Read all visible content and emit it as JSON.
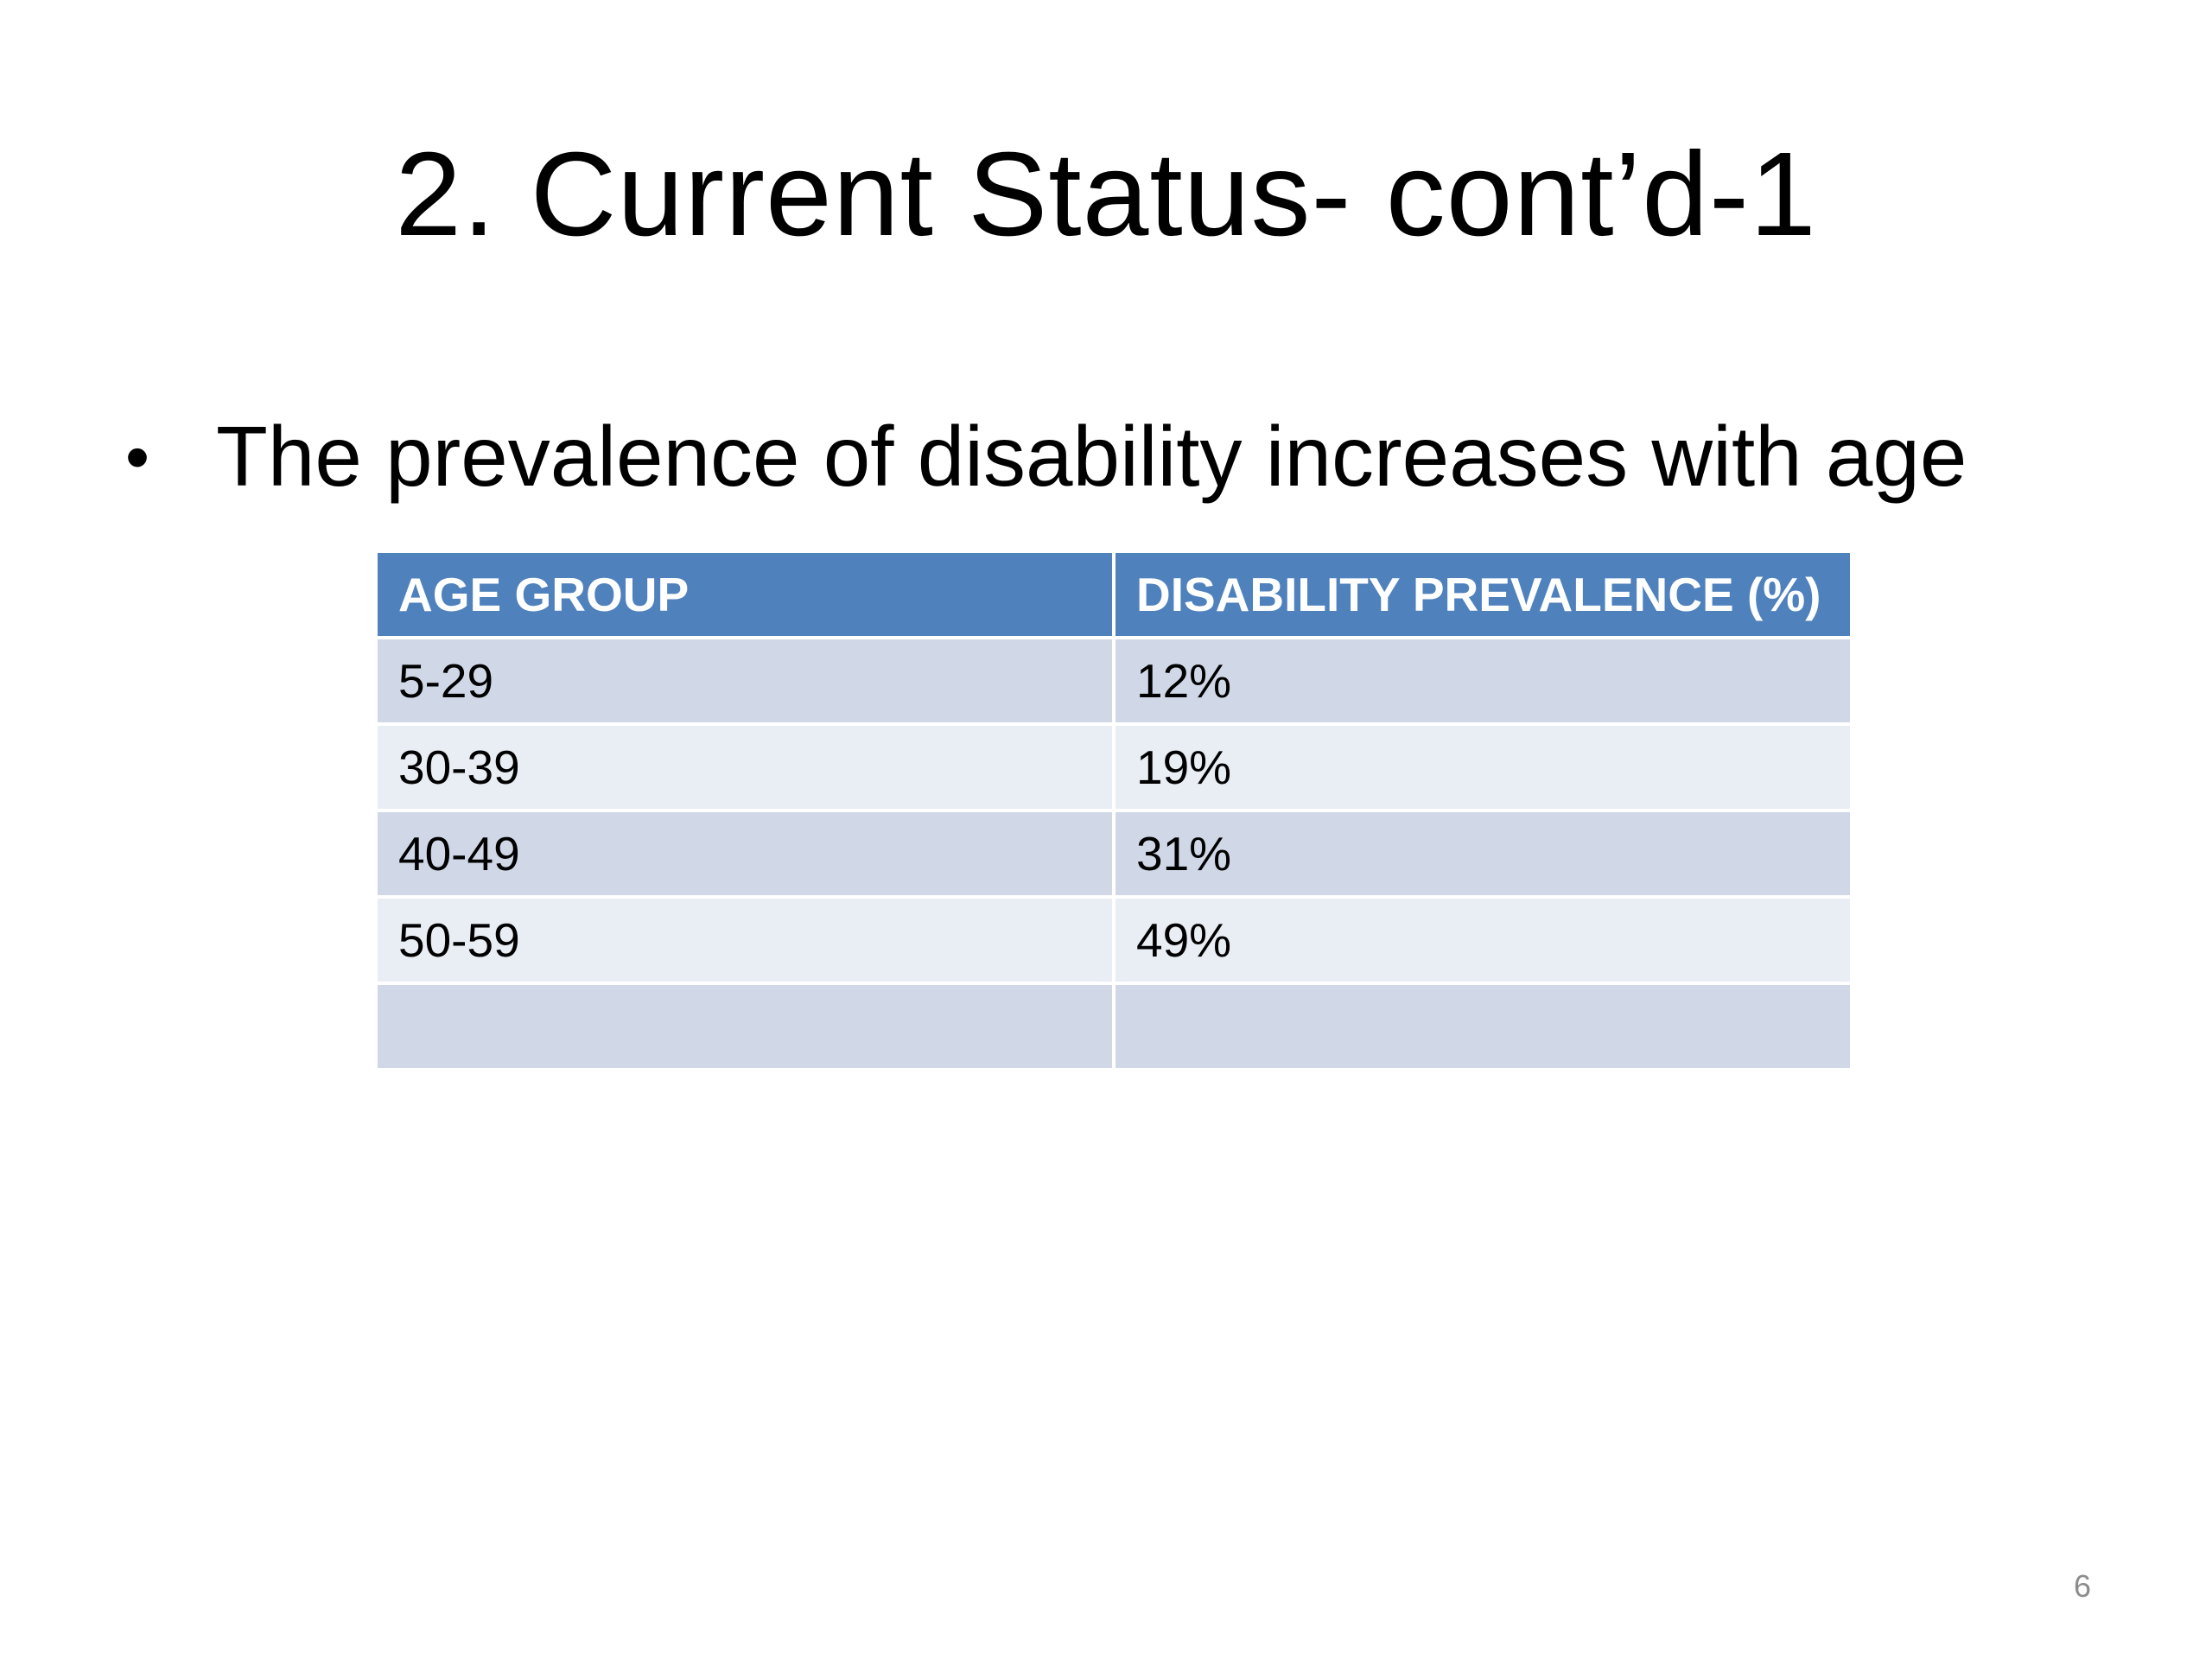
{
  "slide": {
    "title": "2. Current Status- cont’d-1",
    "bullet": "The prevalence of disability increases with age",
    "page_number": "6"
  },
  "table": {
    "headers": [
      "AGE GROUP",
      "DISABILITY PREVALENCE (%)"
    ],
    "rows": [
      [
        "5-29",
        "12%"
      ],
      [
        "30-39",
        "19%"
      ],
      [
        "40-49",
        "31%"
      ],
      [
        "50-59",
        "49%"
      ],
      [
        "",
        ""
      ]
    ]
  },
  "colors": {
    "header": "#4f81bd",
    "row_odd": "#d0d8e8",
    "row_even": "#e9edf4"
  }
}
